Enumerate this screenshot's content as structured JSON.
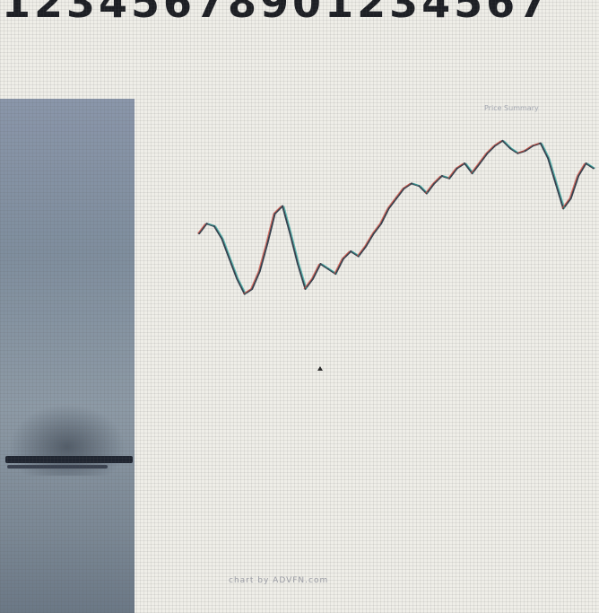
{
  "header": {
    "digits": "12345678901234567"
  },
  "chart": {
    "top_label": "Price Summary",
    "footer_label": "chart by ADVFN.com",
    "line_color": "#35414f",
    "up_color": "#d04a3c",
    "down_color": "#2ea7a0",
    "background_color": "#efeee8"
  },
  "chart_data": {
    "type": "line",
    "title": "",
    "xlabel": "",
    "ylabel": "",
    "values": [
      62,
      66,
      65,
      60,
      52,
      44,
      38,
      40,
      47,
      58,
      70,
      73,
      62,
      50,
      40,
      44,
      50,
      48,
      46,
      52,
      55,
      53,
      57,
      62,
      66,
      72,
      76,
      80,
      82,
      81,
      78,
      82,
      85,
      84,
      88,
      90,
      86,
      90,
      94,
      97,
      99,
      96,
      94,
      95,
      97,
      98,
      92,
      82,
      72,
      76,
      85,
      90,
      88
    ],
    "ylim": [
      30,
      105
    ]
  },
  "side_panel": {
    "color": "#7f8e9e"
  }
}
